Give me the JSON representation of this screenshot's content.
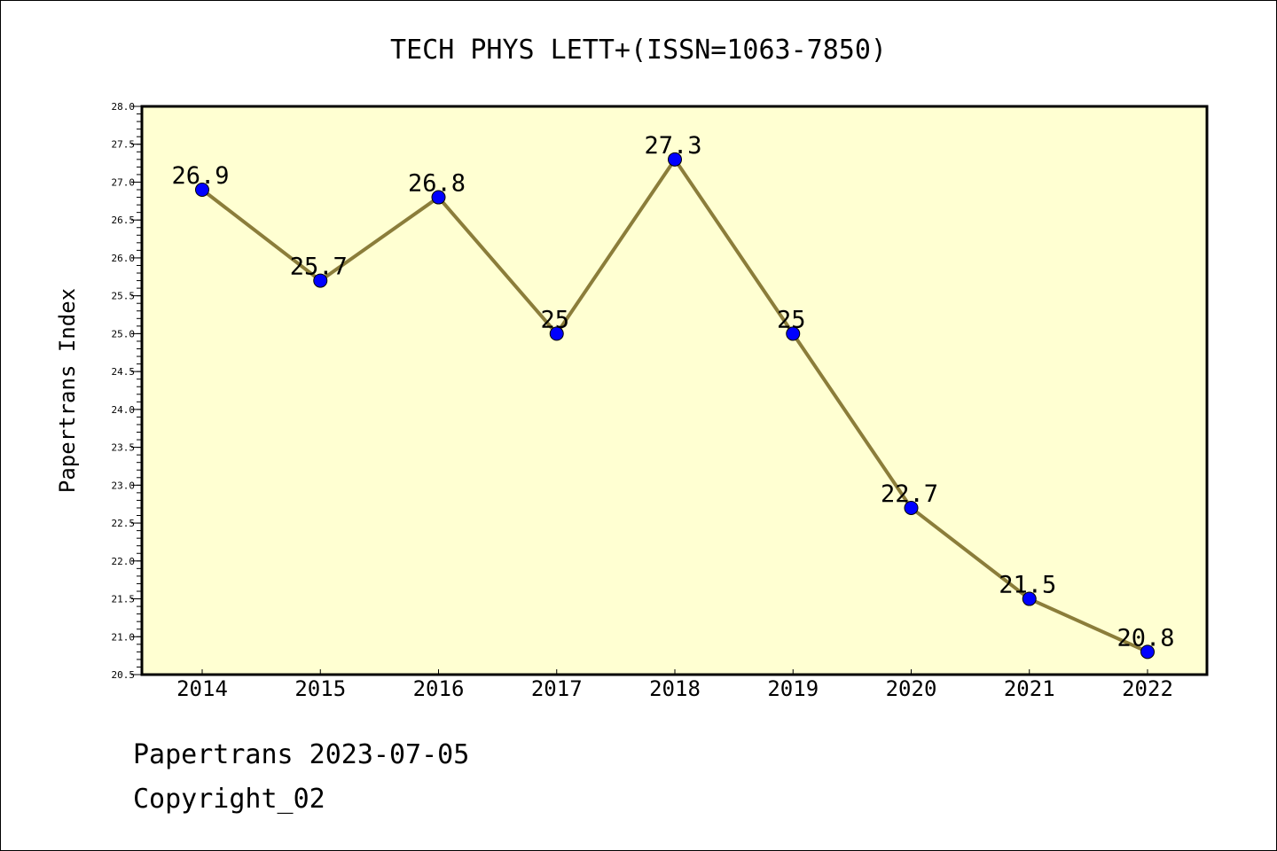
{
  "chart_data": {
    "type": "line",
    "title": "TECH PHYS LETT+(ISSN=1063-7850)",
    "xlabel": "",
    "ylabel": "Papertrans Index",
    "categories": [
      "2014",
      "2015",
      "2016",
      "2017",
      "2018",
      "2019",
      "2020",
      "2021",
      "2022"
    ],
    "series": [
      {
        "values": [
          26.9,
          25.7,
          26.8,
          25,
          27.3,
          25,
          22.7,
          21.5,
          20.8
        ],
        "labels": [
          "26.9",
          "25.7",
          "26.8",
          "25",
          "27.3",
          "25",
          "22.7",
          "21.5",
          "20.8"
        ]
      }
    ],
    "ylim": [
      20.5,
      28.0
    ],
    "yticks": [
      "20.5",
      "21.0",
      "21.5",
      "22.0",
      "22.5",
      "23.0",
      "23.5",
      "24.0",
      "24.5",
      "25.0",
      "25.5",
      "26.0",
      "26.5",
      "27.0",
      "27.5",
      "28.0"
    ],
    "grid": false,
    "legend": "none",
    "colors": {
      "plot_background": "#ffffd2",
      "line": "#8b7d3a",
      "marker": "#0000ff"
    }
  },
  "footer": {
    "date_line": "Papertrans 2023-07-05",
    "copyright": "Copyright_02"
  }
}
